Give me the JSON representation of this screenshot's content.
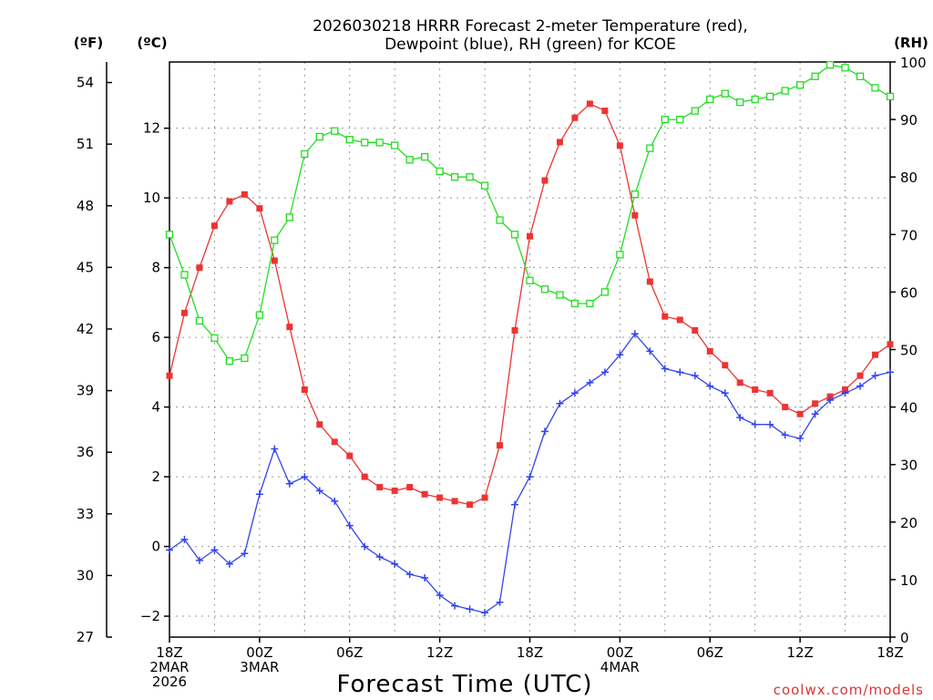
{
  "title_line1": "2026030218 HRRR Forecast 2-meter Temperature (red),",
  "title_line2": "Dewpoint (blue), RH (green) for KCOE",
  "units": {
    "f": "(ºF)",
    "c": "(ºC)",
    "rh": "(RH)"
  },
  "credit": "coolwx.com/models",
  "colors": {
    "temp": "#ee3333",
    "dewp": "#3344ee",
    "rh": "#22dd22"
  },
  "chart_data": {
    "type": "line",
    "xlabel": "Forecast Time (UTC)",
    "x_hours": [
      0,
      1,
      2,
      3,
      4,
      5,
      6,
      7,
      8,
      9,
      10,
      11,
      12,
      13,
      14,
      15,
      16,
      17,
      18,
      19,
      20,
      21,
      22,
      23,
      24,
      25,
      26,
      27,
      28,
      29,
      30,
      31,
      32,
      33,
      34,
      35,
      36,
      37,
      38,
      39,
      40,
      41,
      42,
      43,
      44,
      45,
      46,
      47,
      48
    ],
    "x_ticks": [
      {
        "hour": 0,
        "lines": [
          "18Z",
          "2MAR",
          "2026"
        ]
      },
      {
        "hour": 6,
        "lines": [
          "00Z",
          "3MAR"
        ]
      },
      {
        "hour": 12,
        "lines": [
          "06Z"
        ]
      },
      {
        "hour": 18,
        "lines": [
          "12Z"
        ]
      },
      {
        "hour": 24,
        "lines": [
          "18Z"
        ]
      },
      {
        "hour": 30,
        "lines": [
          "00Z",
          "4MAR"
        ]
      },
      {
        "hour": 36,
        "lines": [
          "06Z"
        ]
      },
      {
        "hour": 42,
        "lines": [
          "12Z"
        ]
      },
      {
        "hour": 48,
        "lines": [
          "18Z"
        ]
      }
    ],
    "y_left_c": {
      "label": "(ºC)",
      "range": [
        -2.6,
        13.9
      ],
      "ticks": [
        -2,
        0,
        2,
        4,
        6,
        8,
        10,
        12
      ]
    },
    "y_left_f": {
      "label": "(ºF)",
      "range": [
        27,
        55
      ],
      "ticks": [
        27,
        30,
        33,
        36,
        39,
        42,
        45,
        48,
        51,
        54
      ]
    },
    "y_right_rh": {
      "label": "(RH)",
      "range": [
        0,
        100
      ],
      "ticks": [
        0,
        10,
        20,
        30,
        40,
        50,
        60,
        70,
        80,
        90,
        100
      ]
    },
    "series": [
      {
        "name": "2-meter Temperature",
        "unit": "C",
        "color": "red",
        "marker": "filled-square",
        "values": [
          4.9,
          6.7,
          8.0,
          9.2,
          9.9,
          10.1,
          9.7,
          8.2,
          6.3,
          4.5,
          3.5,
          3.0,
          2.6,
          2.0,
          1.7,
          1.6,
          1.7,
          1.5,
          1.4,
          1.3,
          1.2,
          1.4,
          2.9,
          6.2,
          8.9,
          10.5,
          11.6,
          12.3,
          12.7,
          12.5,
          11.5,
          9.5,
          7.6,
          6.6,
          6.5,
          6.2,
          5.6,
          5.2,
          4.7,
          4.5,
          4.4,
          4.0,
          3.8,
          4.1,
          4.3,
          4.5,
          4.9,
          5.5,
          5.8
        ]
      },
      {
        "name": "Dewpoint",
        "unit": "C",
        "color": "blue",
        "marker": "plus",
        "values": [
          -0.1,
          0.2,
          -0.4,
          -0.1,
          -0.5,
          -0.2,
          1.5,
          2.8,
          1.8,
          2.0,
          1.6,
          1.3,
          0.6,
          0.0,
          -0.3,
          -0.5,
          -0.8,
          -0.9,
          -1.4,
          -1.7,
          -1.8,
          -1.9,
          -1.6,
          1.2,
          2.0,
          3.3,
          4.1,
          4.4,
          4.7,
          5.0,
          5.5,
          6.1,
          5.6,
          5.1,
          5.0,
          4.9,
          4.6,
          4.4,
          3.7,
          3.5,
          3.5,
          3.2,
          3.1,
          3.8,
          4.2,
          4.4,
          4.6,
          4.9,
          5.0
        ]
      },
      {
        "name": "RH",
        "unit": "%",
        "color": "green",
        "marker": "open-square",
        "values": [
          70,
          63,
          55,
          52,
          48,
          48.5,
          56,
          69,
          73,
          84,
          87,
          88,
          86.5,
          86,
          86,
          85.5,
          83,
          83.5,
          81,
          80,
          80,
          78.5,
          72.5,
          70,
          62,
          60.5,
          59.5,
          58,
          58,
          60,
          66.5,
          77,
          85,
          90,
          90,
          91.5,
          93.5,
          94.5,
          93,
          93.5,
          94,
          95,
          96,
          97.5,
          99.5,
          99,
          97.5,
          95.5,
          94
        ]
      }
    ]
  }
}
